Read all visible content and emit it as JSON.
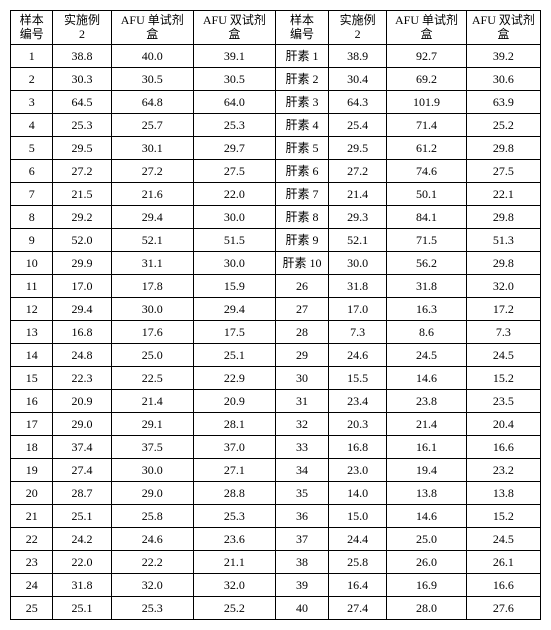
{
  "table": {
    "headers": {
      "h1": "样本\n编号",
      "h2": "实施例\n2",
      "h3": "AFU 单试剂\n盒",
      "h4": "AFU 双试剂\n盒",
      "h5": "样本\n编号",
      "h6": "实施例\n2",
      "h7": "AFU 单试剂\n盒",
      "h8": "AFU 双试剂\n盒"
    },
    "rows": [
      {
        "a": "1",
        "b": "38.8",
        "c": "40.0",
        "d": "39.1",
        "e": "肝素 1",
        "f": "38.9",
        "g": "92.7",
        "h": "39.2"
      },
      {
        "a": "2",
        "b": "30.3",
        "c": "30.5",
        "d": "30.5",
        "e": "肝素 2",
        "f": "30.4",
        "g": "69.2",
        "h": "30.6"
      },
      {
        "a": "3",
        "b": "64.5",
        "c": "64.8",
        "d": "64.0",
        "e": "肝素 3",
        "f": "64.3",
        "g": "101.9",
        "h": "63.9"
      },
      {
        "a": "4",
        "b": "25.3",
        "c": "25.7",
        "d": "25.3",
        "e": "肝素 4",
        "f": "25.4",
        "g": "71.4",
        "h": "25.2"
      },
      {
        "a": "5",
        "b": "29.5",
        "c": "30.1",
        "d": "29.7",
        "e": "肝素 5",
        "f": "29.5",
        "g": "61.2",
        "h": "29.8"
      },
      {
        "a": "6",
        "b": "27.2",
        "c": "27.2",
        "d": "27.5",
        "e": "肝素 6",
        "f": "27.2",
        "g": "74.6",
        "h": "27.5"
      },
      {
        "a": "7",
        "b": "21.5",
        "c": "21.6",
        "d": "22.0",
        "e": "肝素 7",
        "f": "21.4",
        "g": "50.1",
        "h": "22.1"
      },
      {
        "a": "8",
        "b": "29.2",
        "c": "29.4",
        "d": "30.0",
        "e": "肝素 8",
        "f": "29.3",
        "g": "84.1",
        "h": "29.8"
      },
      {
        "a": "9",
        "b": "52.0",
        "c": "52.1",
        "d": "51.5",
        "e": "肝素 9",
        "f": "52.1",
        "g": "71.5",
        "h": "51.3"
      },
      {
        "a": "10",
        "b": "29.9",
        "c": "31.1",
        "d": "30.0",
        "e": "肝素 10",
        "f": "30.0",
        "g": "56.2",
        "h": "29.8"
      },
      {
        "a": "11",
        "b": "17.0",
        "c": "17.8",
        "d": "15.9",
        "e": "26",
        "f": "31.8",
        "g": "31.8",
        "h": "32.0"
      },
      {
        "a": "12",
        "b": "29.4",
        "c": "30.0",
        "d": "29.4",
        "e": "27",
        "f": "17.0",
        "g": "16.3",
        "h": "17.2"
      },
      {
        "a": "13",
        "b": "16.8",
        "c": "17.6",
        "d": "17.5",
        "e": "28",
        "f": "7.3",
        "g": "8.6",
        "h": "7.3"
      },
      {
        "a": "14",
        "b": "24.8",
        "c": "25.0",
        "d": "25.1",
        "e": "29",
        "f": "24.6",
        "g": "24.5",
        "h": "24.5"
      },
      {
        "a": "15",
        "b": "22.3",
        "c": "22.5",
        "d": "22.9",
        "e": "30",
        "f": "15.5",
        "g": "14.6",
        "h": "15.2"
      },
      {
        "a": "16",
        "b": "20.9",
        "c": "21.4",
        "d": "20.9",
        "e": "31",
        "f": "23.4",
        "g": "23.8",
        "h": "23.5"
      },
      {
        "a": "17",
        "b": "29.0",
        "c": "29.1",
        "d": "28.1",
        "e": "32",
        "f": "20.3",
        "g": "21.4",
        "h": "20.4"
      },
      {
        "a": "18",
        "b": "37.4",
        "c": "37.5",
        "d": "37.0",
        "e": "33",
        "f": "16.8",
        "g": "16.1",
        "h": "16.6"
      },
      {
        "a": "19",
        "b": "27.4",
        "c": "30.0",
        "d": "27.1",
        "e": "34",
        "f": "23.0",
        "g": "19.4",
        "h": "23.2"
      },
      {
        "a": "20",
        "b": "28.7",
        "c": "29.0",
        "d": "28.8",
        "e": "35",
        "f": "14.0",
        "g": "13.8",
        "h": "13.8"
      },
      {
        "a": "21",
        "b": "25.1",
        "c": "25.8",
        "d": "25.3",
        "e": "36",
        "f": "15.0",
        "g": "14.6",
        "h": "15.2"
      },
      {
        "a": "22",
        "b": "24.2",
        "c": "24.6",
        "d": "23.6",
        "e": "37",
        "f": "24.4",
        "g": "25.0",
        "h": "24.5"
      },
      {
        "a": "23",
        "b": "22.0",
        "c": "22.2",
        "d": "21.1",
        "e": "38",
        "f": "25.8",
        "g": "26.0",
        "h": "26.1"
      },
      {
        "a": "24",
        "b": "31.8",
        "c": "32.0",
        "d": "32.0",
        "e": "39",
        "f": "16.4",
        "g": "16.9",
        "h": "16.6"
      },
      {
        "a": "25",
        "b": "25.1",
        "c": "25.3",
        "d": "25.2",
        "e": "40",
        "f": "27.4",
        "g": "28.0",
        "h": "27.6"
      }
    ],
    "style": {
      "border_color": "#000000",
      "background_color": "#ffffff",
      "text_color": "#000000",
      "font_size_pt": 9,
      "font_family": "SimSun",
      "cell_align": "center"
    }
  }
}
